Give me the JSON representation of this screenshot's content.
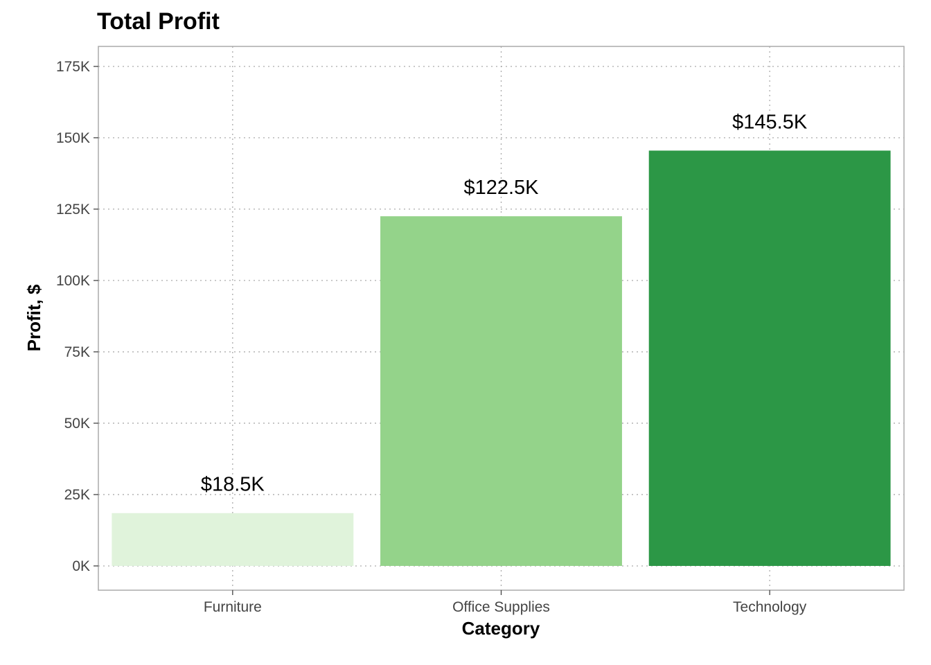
{
  "chart_data": {
    "type": "bar",
    "title": "Total Profit",
    "xlabel": "Category",
    "ylabel": "Profit, $",
    "categories": [
      "Furniture",
      "Office Supplies",
      "Technology"
    ],
    "values": [
      18500,
      122500,
      145500
    ],
    "data_labels": [
      "$18.5K",
      "$122.5K",
      "$145.5K"
    ],
    "colors": [
      "#e0f3db",
      "#94d38a",
      "#2c9746"
    ],
    "ylim": [
      -8500,
      182000
    ],
    "yticks": [
      0,
      25000,
      50000,
      75000,
      100000,
      125000,
      150000,
      175000
    ],
    "ytick_labels": [
      "0K",
      "25K",
      "50K",
      "75K",
      "100K",
      "125K",
      "150K",
      "175K"
    ],
    "grid": true,
    "grid_style": "dotted",
    "panel_border_color": "#aaaaaa"
  }
}
